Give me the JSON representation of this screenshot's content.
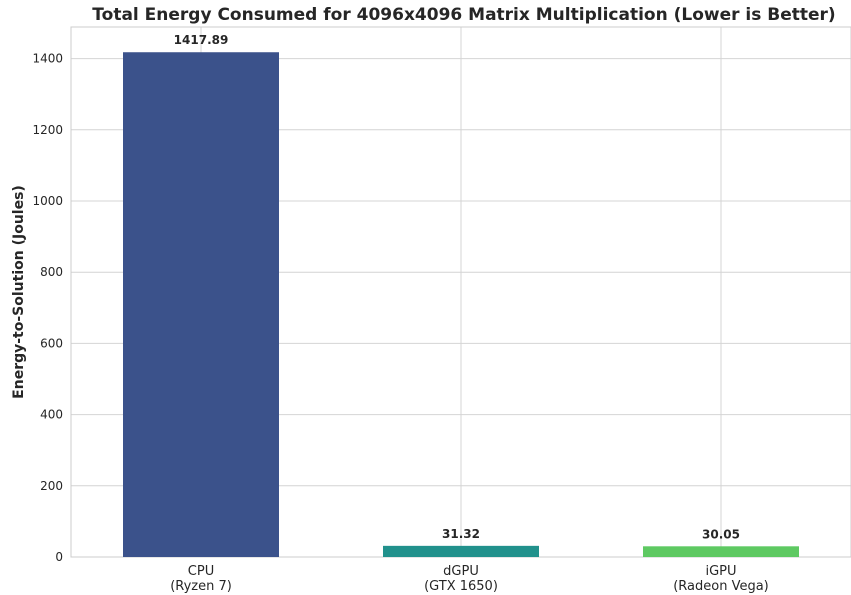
{
  "chart_data": {
    "type": "bar",
    "title": "Total Energy Consumed for 4096x4096 Matrix Multiplication (Lower is Better)",
    "xlabel": "",
    "ylabel": "Energy-to-Solution (Joules)",
    "categories": [
      [
        "CPU",
        "(Ryzen 7)"
      ],
      [
        "dGPU",
        "(GTX 1650)"
      ],
      [
        "iGPU",
        "(Radeon Vega)"
      ]
    ],
    "values": [
      1417.89,
      31.32,
      30.05
    ],
    "data_labels": [
      "1417.89",
      "31.32",
      "30.05"
    ],
    "colors": [
      "#3b528b",
      "#21918c",
      "#5ec962"
    ],
    "ylim": [
      0,
      1488.78
    ],
    "yticks": [
      0,
      200,
      400,
      600,
      800,
      1000,
      1200,
      1400
    ],
    "grid": true,
    "legend": "none"
  }
}
